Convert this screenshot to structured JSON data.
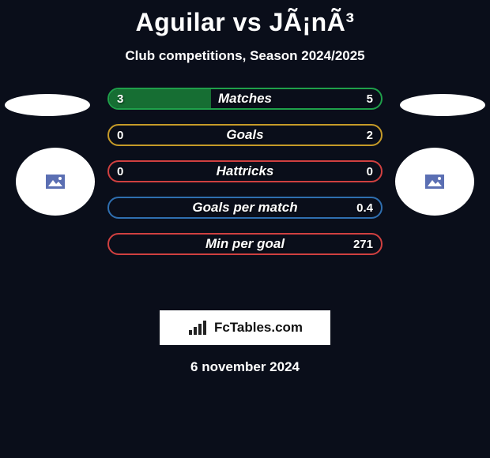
{
  "title": "Aguilar vs JÃ¡nÃ³",
  "subtitle": "Club competitions, Season 2024/2025",
  "date": "6 november 2024",
  "brand_text": "FcTables.com",
  "background_color": "#0a0e1a",
  "text_color": "#ffffff",
  "player_left_icon_bg": "#5b6fb3",
  "player_right_icon_bg": "#5b6fb3",
  "bars": [
    {
      "label": "Matches",
      "left_val": "3",
      "right_val": "5",
      "left_frac": 0.375,
      "border_color": "#1fa04a",
      "fill_color": "#166e33"
    },
    {
      "label": "Goals",
      "left_val": "0",
      "right_val": "2",
      "left_frac": 0.0,
      "border_color": "#c59a28",
      "fill_color": "#8a6c1c"
    },
    {
      "label": "Hattricks",
      "left_val": "0",
      "right_val": "0",
      "left_frac": 0.0,
      "border_color": "#d04040",
      "fill_color": "#8a2b2b"
    },
    {
      "label": "Goals per match",
      "left_val": "",
      "right_val": "0.4",
      "left_frac": 0.0,
      "border_color": "#2f6fb0",
      "fill_color": "#214d78"
    },
    {
      "label": "Min per goal",
      "left_val": "",
      "right_val": "271",
      "left_frac": 0.0,
      "border_color": "#d04040",
      "fill_color": "#8a2b2b"
    }
  ]
}
